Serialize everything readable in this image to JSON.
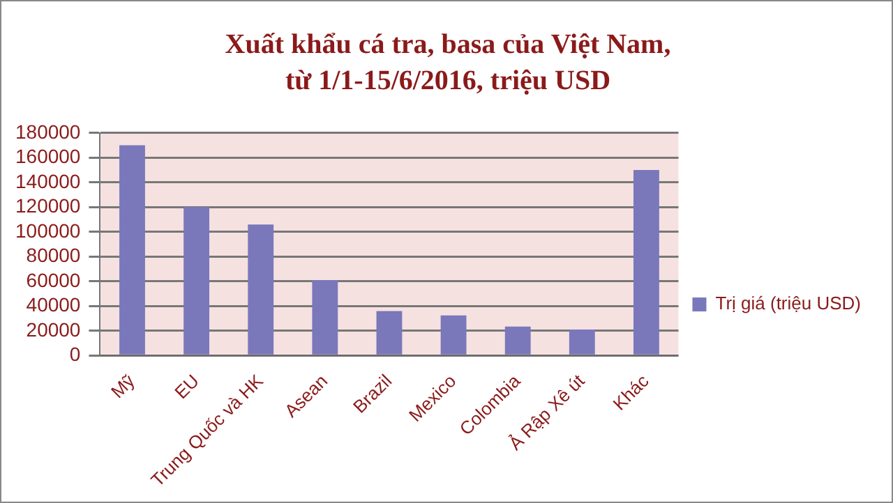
{
  "chart_data": {
    "type": "bar",
    "title": "Xuất khẩu cá tra, basa của Việt Nam,\ntừ 1/1-15/6/2016, triệu USD",
    "categories": [
      "Mỹ",
      "EU",
      "Trung Quốc và HK",
      "Asean",
      "Brazil",
      "Mexico",
      "Colombia",
      "Ả Rập Xê út",
      "Khác"
    ],
    "series": [
      {
        "name": "Trị giá (triệu USD)",
        "color": "#7a78bb",
        "values": [
          170000,
          120000,
          106000,
          61000,
          36000,
          32500,
          23500,
          21000,
          150000
        ]
      }
    ],
    "ylim": [
      0,
      180000
    ],
    "yticks": [
      0,
      20000,
      40000,
      60000,
      80000,
      100000,
      120000,
      140000,
      160000,
      180000
    ],
    "grid": "y",
    "legend": "right"
  }
}
